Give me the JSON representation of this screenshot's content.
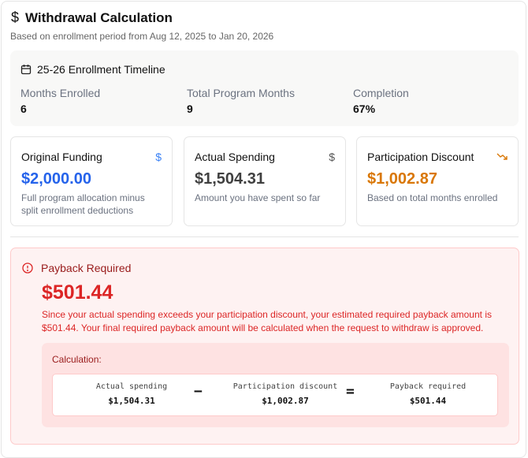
{
  "header": {
    "title": "Withdrawal Calculation",
    "subtitle": "Based on enrollment period from Aug 12, 2025 to Jan 20, 2026"
  },
  "timeline": {
    "title": "25-26 Enrollment Timeline",
    "stats": [
      {
        "label": "Months Enrolled",
        "value": "6"
      },
      {
        "label": "Total Program Months",
        "value": "9"
      },
      {
        "label": "Completion",
        "value": "67%"
      }
    ]
  },
  "cards": [
    {
      "title": "Original Funding",
      "amount": "$2,000.00",
      "desc": "Full program allocation minus split enrollment deductions",
      "icon": "dollar-icon",
      "color": "#2563eb"
    },
    {
      "title": "Actual Spending",
      "amount": "$1,504.31",
      "desc": "Amount you have spent so far",
      "icon": "dollar-icon",
      "color": "#404040"
    },
    {
      "title": "Participation Discount",
      "amount": "$1,002.87",
      "desc": "Based on total months enrolled",
      "icon": "trending-down-icon",
      "color": "#d97706"
    }
  ],
  "payback": {
    "title": "Payback Required",
    "amount": "$501.44",
    "message": "Since your actual spending exceeds your participation discount, your estimated required payback amount is $501.44. Your final required payback amount will be calculated when the request to withdraw is approved.",
    "calc": {
      "label": "Calculation:",
      "minus": "−",
      "equals": "=",
      "items": [
        {
          "label": "Actual spending",
          "value": "$1,504.31"
        },
        {
          "label": "Participation discount",
          "value": "$1,002.87"
        },
        {
          "label": "Payback required",
          "value": "$501.44"
        }
      ]
    }
  }
}
